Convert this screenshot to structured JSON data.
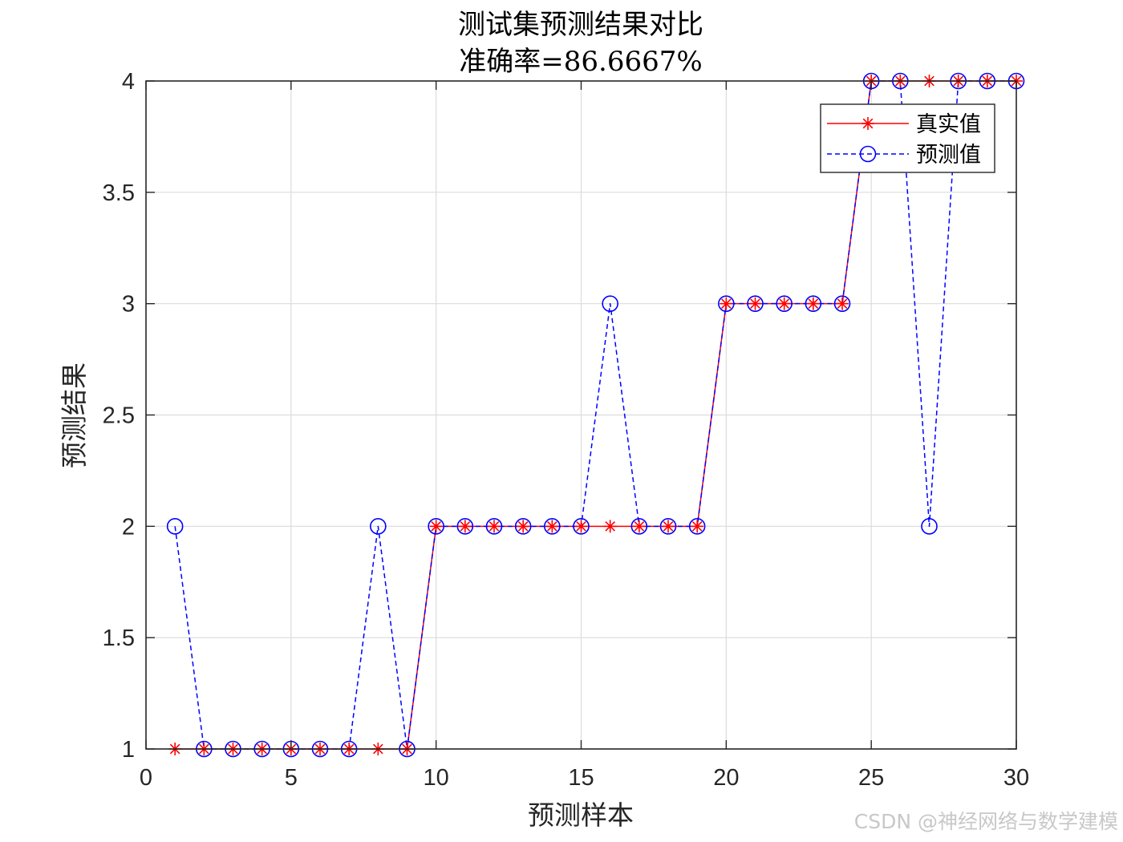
{
  "chart_data": {
    "type": "line",
    "title": "测试集预测结果对比",
    "subtitle": "准确率=86.6667%",
    "xlabel": "预测样本",
    "ylabel": "预测结果",
    "xlim": [
      0,
      30
    ],
    "ylim": [
      1,
      4
    ],
    "xticks": [
      0,
      5,
      10,
      15,
      20,
      25,
      30
    ],
    "yticks": [
      1,
      1.5,
      2,
      2.5,
      3,
      3.5,
      4
    ],
    "xtick_labels": [
      "0",
      "5",
      "10",
      "15",
      "20",
      "25",
      "30"
    ],
    "ytick_labels": [
      "1",
      "1.5",
      "2",
      "2.5",
      "3",
      "3.5",
      "4"
    ],
    "grid": true,
    "legend_position": "top-right",
    "x": [
      1,
      2,
      3,
      4,
      5,
      6,
      7,
      8,
      9,
      10,
      11,
      12,
      13,
      14,
      15,
      16,
      17,
      18,
      19,
      20,
      21,
      22,
      23,
      24,
      25,
      26,
      27,
      28,
      29,
      30
    ],
    "series": [
      {
        "name": "真实值",
        "color": "#ff0000",
        "line_style": "solid",
        "marker": "asterisk",
        "values": [
          1,
          1,
          1,
          1,
          1,
          1,
          1,
          1,
          1,
          2,
          2,
          2,
          2,
          2,
          2,
          2,
          2,
          2,
          2,
          3,
          3,
          3,
          3,
          3,
          4,
          4,
          4,
          4,
          4,
          4
        ]
      },
      {
        "name": "预测值",
        "color": "#0000ff",
        "line_style": "dashed",
        "marker": "circle",
        "values": [
          2,
          1,
          1,
          1,
          1,
          1,
          1,
          2,
          1,
          2,
          2,
          2,
          2,
          2,
          2,
          3,
          2,
          2,
          2,
          3,
          3,
          3,
          3,
          3,
          4,
          4,
          2,
          4,
          4,
          4
        ]
      }
    ]
  },
  "watermark": "CSDN @神经网络与数学建模"
}
